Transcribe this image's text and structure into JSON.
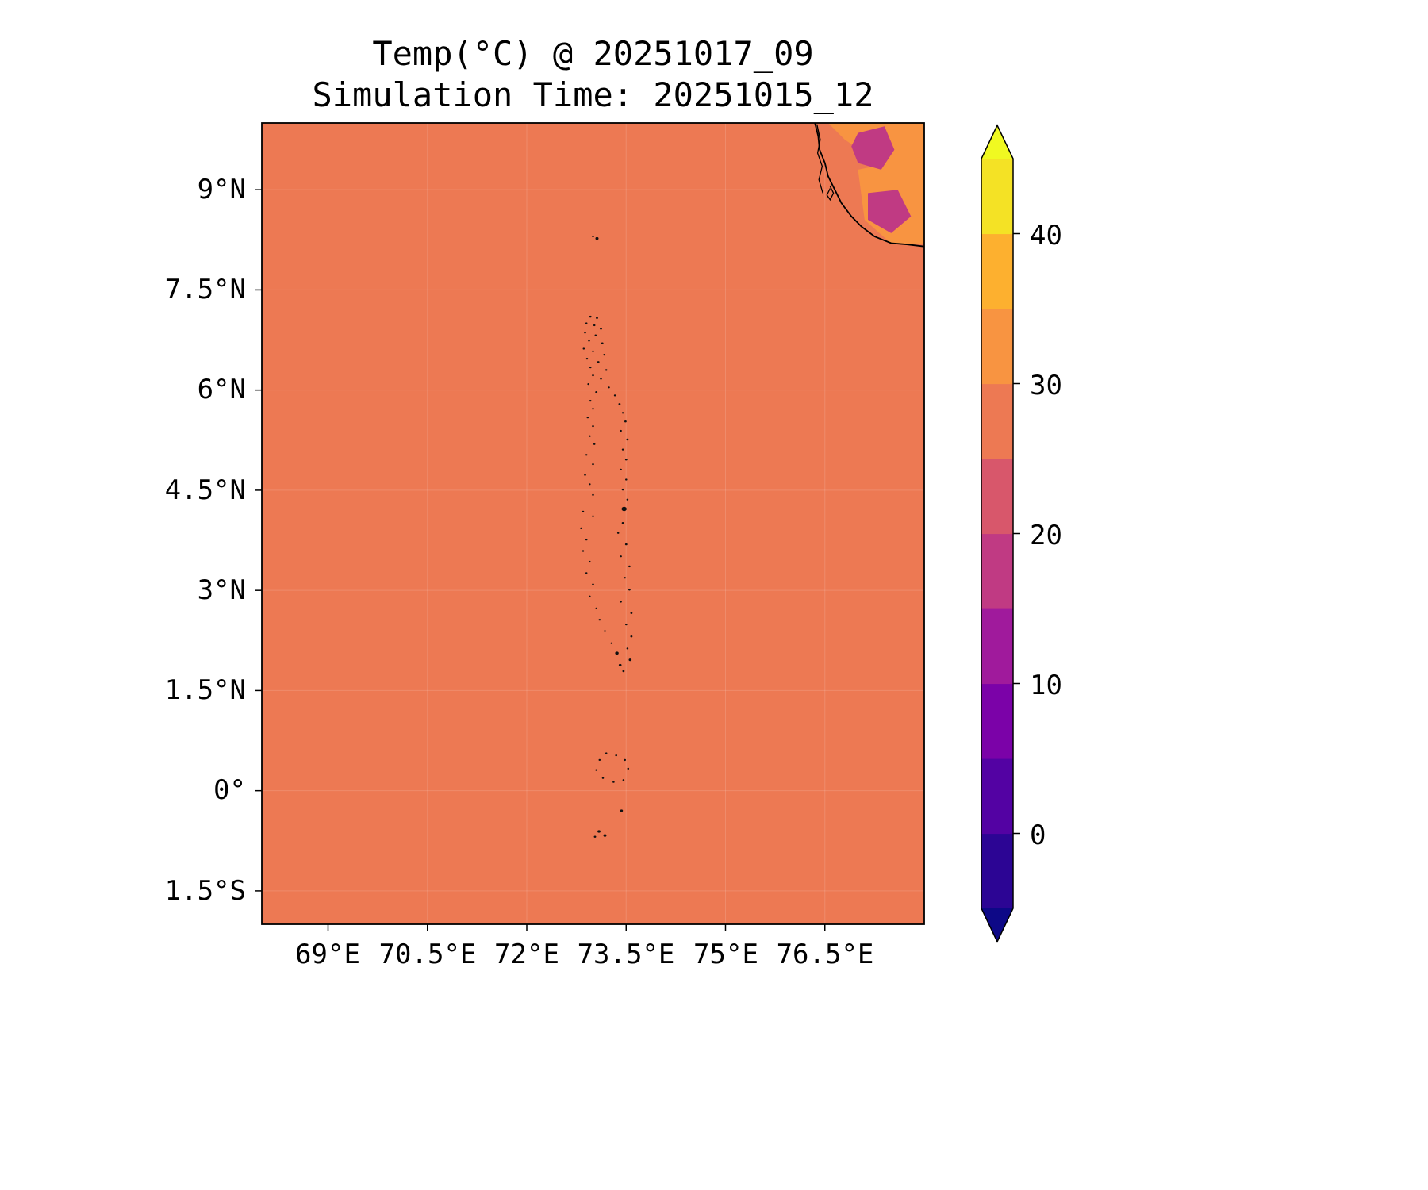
{
  "figure": {
    "title_line1": "Temp(°C) @ 20251017_09",
    "title_line2": "Simulation Time: 20251015_12"
  },
  "axes": {
    "x_tick_labels": [
      "69°E",
      "70.5°E",
      "72°E",
      "73.5°E",
      "75°E",
      "76.5°E"
    ],
    "y_tick_labels": [
      "9°N",
      "7.5°N",
      "6°N",
      "4.5°N",
      "3°N",
      "1.5°N",
      "0°",
      "1.5°S"
    ]
  },
  "colorbar": {
    "tick_labels": [
      "40",
      "30",
      "20",
      "10",
      "0"
    ],
    "ticks": [
      {
        "label": "40",
        "value": 40
      },
      {
        "label": "30",
        "value": 30
      },
      {
        "label": "20",
        "value": 20
      },
      {
        "label": "10",
        "value": 10
      },
      {
        "label": "0",
        "value": 0
      }
    ],
    "vmin": -5,
    "vmax": 45,
    "over_color": "#f0f921",
    "under_color": "#0d0887",
    "segments": [
      {
        "from": -5,
        "to": 0,
        "color": "#2c0594"
      },
      {
        "from": 0,
        "to": 5,
        "color": "#5302a3"
      },
      {
        "from": 5,
        "to": 10,
        "color": "#7b02a8"
      },
      {
        "from": 10,
        "to": 15,
        "color": "#a01a9c"
      },
      {
        "from": 15,
        "to": 20,
        "color": "#c03a83"
      },
      {
        "from": 20,
        "to": 25,
        "color": "#d8576b"
      },
      {
        "from": 25,
        "to": 30,
        "color": "#ed7953"
      },
      {
        "from": 30,
        "to": 35,
        "color": "#f89441"
      },
      {
        "from": 35,
        "to": 40,
        "color": "#fdb02f"
      },
      {
        "from": 40,
        "to": 45,
        "color": "#f4e225"
      }
    ]
  },
  "chart_data": {
    "type": "heatmap",
    "title": "Temp(°C) @ 20251017_09",
    "subtitle": "Simulation Time: 20251015_12",
    "variable": "Temperature (°C)",
    "colormap": "plasma",
    "lon_range": [
      68,
      78
    ],
    "lat_range": [
      -2,
      10
    ],
    "x_tick_values": [
      69,
      70.5,
      72,
      73.5,
      75,
      76.5
    ],
    "y_tick_values": [
      9,
      7.5,
      6,
      4.5,
      3,
      1.5,
      0,
      -1.5
    ],
    "colorbar_tick_values": [
      40,
      30,
      20,
      10,
      0
    ],
    "levels": [
      -5,
      0,
      5,
      10,
      15,
      20,
      25,
      30,
      35,
      40,
      45
    ],
    "sea_color": "#ed7953",
    "sea_temp_band_c": "25-30",
    "features": {
      "land_base_color": "#ed7953",
      "coastline": [
        [
          76.35,
          10.0
        ],
        [
          76.4,
          9.8
        ],
        [
          76.42,
          9.6
        ],
        [
          76.5,
          9.4
        ],
        [
          76.55,
          9.2
        ],
        [
          76.65,
          9.0
        ],
        [
          76.75,
          8.8
        ],
        [
          76.9,
          8.6
        ],
        [
          77.05,
          8.45
        ],
        [
          77.25,
          8.3
        ],
        [
          77.5,
          8.2
        ],
        [
          77.75,
          8.18
        ],
        [
          78.0,
          8.15
        ]
      ],
      "land_patches": [
        {
          "band_c": "30-35",
          "color": "#f89441",
          "points": [
            [
              76.55,
              10.0
            ],
            [
              78,
              10.0
            ],
            [
              78,
              9.35
            ],
            [
              77.55,
              9.25
            ],
            [
              77.1,
              9.55
            ],
            [
              76.8,
              9.75
            ]
          ]
        },
        {
          "band_c": "30-35",
          "color": "#f89441",
          "points": [
            [
              77.0,
              9.3
            ],
            [
              78,
              9.5
            ],
            [
              78,
              8.2
            ],
            [
              77.55,
              8.15
            ],
            [
              77.1,
              8.55
            ]
          ]
        },
        {
          "band_c": "15-20",
          "color": "#c03a83",
          "points": [
            [
              77.0,
              9.85
            ],
            [
              77.4,
              9.95
            ],
            [
              77.55,
              9.6
            ],
            [
              77.35,
              9.3
            ],
            [
              77.0,
              9.4
            ],
            [
              76.9,
              9.65
            ]
          ]
        },
        {
          "band_c": "15-20",
          "color": "#c03a83",
          "points": [
            [
              77.15,
              8.95
            ],
            [
              77.6,
              9.0
            ],
            [
              77.8,
              8.6
            ],
            [
              77.5,
              8.35
            ],
            [
              77.15,
              8.55
            ]
          ]
        }
      ],
      "inland_waters": [
        [
          [
            76.38,
            9.98
          ],
          [
            76.43,
            9.75
          ],
          [
            76.39,
            9.55
          ],
          [
            76.46,
            9.35
          ],
          [
            76.41,
            9.15
          ],
          [
            76.47,
            8.95
          ]
        ],
        [
          [
            76.58,
            9.05
          ],
          [
            76.63,
            8.95
          ],
          [
            76.58,
            8.85
          ],
          [
            76.53,
            8.92
          ],
          [
            76.58,
            9.02
          ]
        ]
      ],
      "islands": [
        [
          73.0,
          8.3,
          1.2
        ],
        [
          73.06,
          8.27,
          2.0
        ],
        [
          72.96,
          7.1,
          1.4
        ],
        [
          73.06,
          7.08,
          1.4
        ],
        [
          72.9,
          7.0,
          1.3
        ],
        [
          73.02,
          6.97,
          1.3
        ],
        [
          73.12,
          6.92,
          1.4
        ],
        [
          72.88,
          6.86,
          1.3
        ],
        [
          73.04,
          6.82,
          1.3
        ],
        [
          72.94,
          6.74,
          1.3
        ],
        [
          73.14,
          6.7,
          1.4
        ],
        [
          72.86,
          6.62,
          1.3
        ],
        [
          73.0,
          6.58,
          1.3
        ],
        [
          73.17,
          6.53,
          1.3
        ],
        [
          72.91,
          6.47,
          1.3
        ],
        [
          73.08,
          6.42,
          1.4
        ],
        [
          72.96,
          6.34,
          1.3
        ],
        [
          73.2,
          6.3,
          1.3
        ],
        [
          73.0,
          6.22,
          1.3
        ],
        [
          73.12,
          6.17,
          1.3
        ],
        [
          72.93,
          6.09,
          1.3
        ],
        [
          73.24,
          6.04,
          1.3
        ],
        [
          73.05,
          5.97,
          1.4
        ],
        [
          73.33,
          5.92,
          1.3
        ],
        [
          72.96,
          5.84,
          1.3
        ],
        [
          73.4,
          5.79,
          1.4
        ],
        [
          73.0,
          5.72,
          1.3
        ],
        [
          73.45,
          5.66,
          1.3
        ],
        [
          72.92,
          5.59,
          1.3
        ],
        [
          73.49,
          5.53,
          1.4
        ],
        [
          73.0,
          5.46,
          1.3
        ],
        [
          73.42,
          5.39,
          1.3
        ],
        [
          72.95,
          5.31,
          1.3
        ],
        [
          73.52,
          5.26,
          1.4
        ],
        [
          73.02,
          5.19,
          1.3
        ],
        [
          73.45,
          5.11,
          1.3
        ],
        [
          72.9,
          5.03,
          1.3
        ],
        [
          73.5,
          4.96,
          1.4
        ],
        [
          73.0,
          4.89,
          1.3
        ],
        [
          73.42,
          4.81,
          1.3
        ],
        [
          72.88,
          4.73,
          1.3
        ],
        [
          73.5,
          4.66,
          1.3
        ],
        [
          72.95,
          4.59,
          1.3
        ],
        [
          73.45,
          4.51,
          1.4
        ],
        [
          73.0,
          4.43,
          1.3
        ],
        [
          73.52,
          4.36,
          1.3
        ],
        [
          73.47,
          4.22,
          3.2
        ],
        [
          72.85,
          4.18,
          1.3
        ],
        [
          73.0,
          4.11,
          1.3
        ],
        [
          73.45,
          4.01,
          1.4
        ],
        [
          72.82,
          3.93,
          1.3
        ],
        [
          73.38,
          3.86,
          1.3
        ],
        [
          72.9,
          3.76,
          1.3
        ],
        [
          73.5,
          3.69,
          1.4
        ],
        [
          72.85,
          3.59,
          1.3
        ],
        [
          73.42,
          3.51,
          1.3
        ],
        [
          72.95,
          3.43,
          1.3
        ],
        [
          73.55,
          3.36,
          1.4
        ],
        [
          72.9,
          3.26,
          1.3
        ],
        [
          73.48,
          3.19,
          1.3
        ],
        [
          73.0,
          3.09,
          1.3
        ],
        [
          73.55,
          3.01,
          1.4
        ],
        [
          72.95,
          2.91,
          1.3
        ],
        [
          73.42,
          2.83,
          1.3
        ],
        [
          73.05,
          2.73,
          1.3
        ],
        [
          73.58,
          2.66,
          1.4
        ],
        [
          73.1,
          2.56,
          1.3
        ],
        [
          73.5,
          2.49,
          1.3
        ],
        [
          73.18,
          2.39,
          1.3
        ],
        [
          73.58,
          2.31,
          1.4
        ],
        [
          73.28,
          2.21,
          1.3
        ],
        [
          73.52,
          2.13,
          1.3
        ],
        [
          73.36,
          2.06,
          2.2
        ],
        [
          73.56,
          1.96,
          1.8
        ],
        [
          73.41,
          1.88,
          1.8
        ],
        [
          73.46,
          1.79,
          1.4
        ],
        [
          73.2,
          0.56,
          1.3
        ],
        [
          73.35,
          0.53,
          1.3
        ],
        [
          73.48,
          0.46,
          1.4
        ],
        [
          73.1,
          0.46,
          1.3
        ],
        [
          73.53,
          0.33,
          1.3
        ],
        [
          73.05,
          0.31,
          1.3
        ],
        [
          73.15,
          0.19,
          1.3
        ],
        [
          73.31,
          0.13,
          1.3
        ],
        [
          73.46,
          0.16,
          1.3
        ],
        [
          73.43,
          -0.3,
          1.8
        ],
        [
          73.09,
          -0.61,
          1.9
        ],
        [
          73.18,
          -0.67,
          1.9
        ],
        [
          73.03,
          -0.69,
          1.4
        ]
      ]
    }
  }
}
